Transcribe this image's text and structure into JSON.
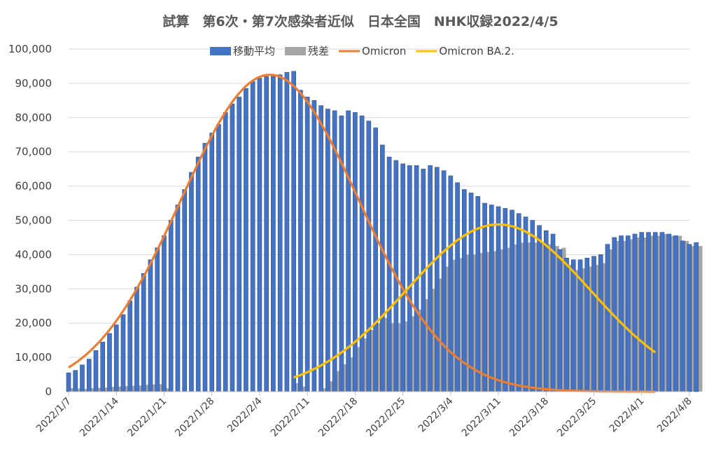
{
  "chart_data": {
    "type": "bar",
    "title": "試算　第6次・第7次感染者近似　日本全国　NHK収録2022/4/5",
    "xlabel": "",
    "ylabel": "",
    "ylim": [
      0,
      100000
    ],
    "yticks": [
      "0",
      "10,000",
      "20,000",
      "30,000",
      "40,000",
      "50,000",
      "60,000",
      "70,000",
      "80,000",
      "90,000",
      "100,000"
    ],
    "x_start": "2022/1/7",
    "x_end": "2022/4/8",
    "xticks": [
      "2022/1/7",
      "2022/1/14",
      "2022/1/21",
      "2022/1/28",
      "2022/2/4",
      "2022/2/11",
      "2022/2/18",
      "2022/2/25",
      "2022/3/4",
      "2022/3/11",
      "2022/3/18",
      "2022/3/25",
      "2022/4/1",
      "2022/4/8"
    ],
    "grid": true,
    "legend_position": "top",
    "series": [
      {
        "name": "移動平均",
        "kind": "bar",
        "color": "#4472C4",
        "values": [
          5500,
          6200,
          7800,
          9500,
          12000,
          14500,
          17000,
          19500,
          22500,
          26500,
          30500,
          34500,
          38500,
          42000,
          45500,
          50000,
          54500,
          59000,
          64000,
          68500,
          72500,
          75500,
          78000,
          81500,
          84000,
          86000,
          88500,
          90500,
          91500,
          92000,
          92500,
          92500,
          93200,
          93500,
          88000,
          86000,
          85000,
          83500,
          82500,
          82000,
          80500,
          82000,
          81500,
          80500,
          79000,
          77000,
          72000,
          68500,
          67500,
          66500,
          66000,
          66000,
          65000,
          66000,
          65500,
          64500,
          63000,
          61000,
          59000,
          58000,
          57000,
          55000,
          54500,
          54000,
          53500,
          53000,
          52000,
          51000,
          50000,
          48500,
          47000,
          46000,
          41500,
          39000,
          38500,
          38500,
          39000,
          39500,
          40000,
          43000,
          45000,
          45500,
          45500,
          46000,
          46500,
          46500,
          46500,
          46500,
          46000,
          45500,
          44000,
          43000,
          43500
        ]
      },
      {
        "name": "残差",
        "kind": "bar",
        "color": "#A5A5A5",
        "values": [
          1000,
          900,
          800,
          1000,
          1100,
          1200,
          1400,
          1500,
          1600,
          1700,
          1800,
          2000,
          2100,
          2200,
          1000,
          0,
          0,
          0,
          0,
          0,
          0,
          0,
          0,
          0,
          0,
          0,
          0,
          0,
          0,
          0,
          0,
          0,
          0,
          2500,
          1500,
          0,
          0,
          1000,
          3000,
          6000,
          8000,
          10000,
          13000,
          15500,
          18000,
          20000,
          21500,
          20000,
          20000,
          20500,
          22000,
          24000,
          27000,
          30000,
          33000,
          36500,
          38500,
          39000,
          40000,
          40000,
          40500,
          40800,
          41000,
          41500,
          42000,
          43000,
          43500,
          43500,
          43500,
          43500,
          43000,
          42500,
          42000,
          37000,
          35500,
          36000,
          36500,
          37000,
          37500,
          41500,
          44000,
          44000,
          44500,
          45000,
          45000,
          45500,
          45500,
          46000,
          45500,
          45500,
          44000,
          42500,
          42500
        ]
      },
      {
        "name": "Omicron",
        "kind": "line",
        "color": "#ED7D31"
      },
      {
        "name": "Omicron BA.2.",
        "kind": "line",
        "color": "#FFC000"
      }
    ]
  }
}
